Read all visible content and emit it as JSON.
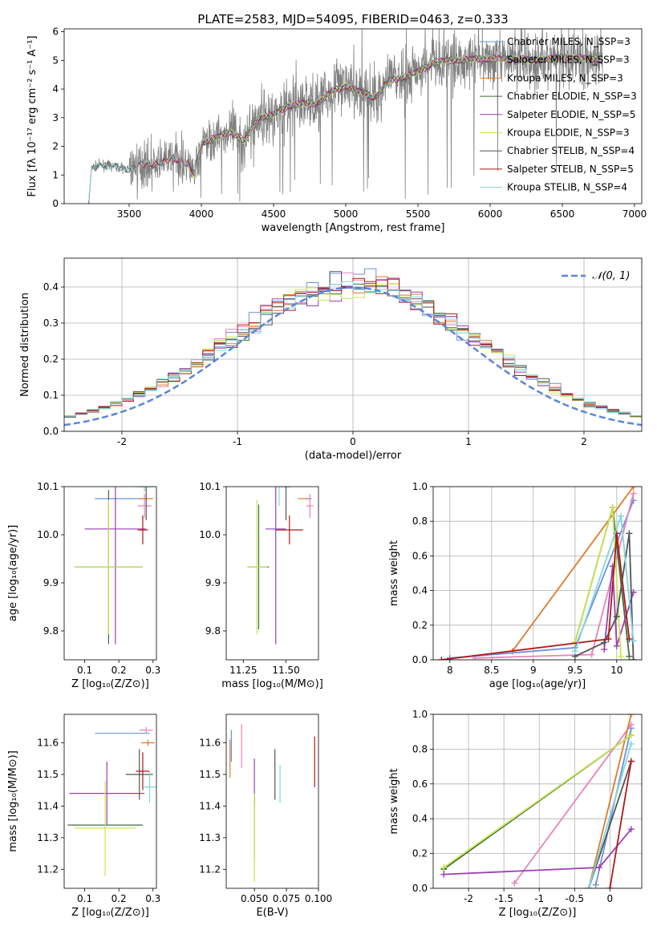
{
  "figure_title": "PLATE=2583, MJD=54095, FIBERID=0463, z=0.333",
  "colors": {
    "chabrier_miles": "#6f8fdc",
    "salpeter_miles": "#e884b8",
    "kroupa_miles": "#e07a2a",
    "chabrier_elodie": "#3e6e3e",
    "salpeter_elodie": "#9b3fb5",
    "kroupa_elodie": "#c8e650",
    "chabrier_stelib": "#555555",
    "salpeter_stelib": "#b01818",
    "kroupa_stelib": "#7fd6de",
    "data": "#808080"
  },
  "chart_data": [
    {
      "id": "spectrum",
      "type": "line",
      "title": "PLATE=2583, MJD=54095, FIBERID=0463, z=0.333",
      "xlabel": "wavelength [Angstrom, rest frame]",
      "ylabel": "Flux [fλ 10⁻¹⁷ erg cm⁻² s⁻¹ A⁻¹]",
      "xlim": [
        3050,
        7050
      ],
      "ylim": [
        0,
        6.1
      ],
      "xticks": [
        3500,
        4000,
        4500,
        5000,
        5500,
        6000,
        6500,
        7000
      ],
      "yticks": [
        0,
        1,
        2,
        3,
        4,
        5,
        6
      ],
      "legend_position": "upper-right",
      "legend": [
        "Chabrier MILES, N_SSP=3",
        "Salpeter MILES, N_SSP=3",
        "Kroupa MILES, N_SSP=3",
        "Chabrier ELODIE, N_SSP=3",
        "Salpeter ELODIE, N_SSP=5",
        "Kroupa ELODIE, N_SSP=3",
        "Chabrier STELIB, N_SSP=4",
        "Salpeter STELIB, N_SSP=5",
        "Kroupa STELIB, N_SSP=4"
      ],
      "continuum_nodes": [
        [
          3220,
          0.0
        ],
        [
          3240,
          1.25
        ],
        [
          3300,
          1.35
        ],
        [
          3400,
          1.3
        ],
        [
          3500,
          1.2
        ],
        [
          3600,
          1.4
        ],
        [
          3700,
          1.35
        ],
        [
          3800,
          1.6
        ],
        [
          3900,
          1.4
        ],
        [
          3950,
          1.0
        ],
        [
          4000,
          2.1
        ],
        [
          4100,
          2.3
        ],
        [
          4200,
          2.5
        ],
        [
          4300,
          2.2
        ],
        [
          4400,
          3.0
        ],
        [
          4500,
          3.1
        ],
        [
          4600,
          3.4
        ],
        [
          4700,
          3.5
        ],
        [
          4800,
          3.5
        ],
        [
          4900,
          3.9
        ],
        [
          5000,
          4.1
        ],
        [
          5100,
          3.9
        ],
        [
          5200,
          3.7
        ],
        [
          5300,
          4.3
        ],
        [
          5400,
          4.4
        ],
        [
          5500,
          4.6
        ],
        [
          5600,
          4.9
        ],
        [
          5700,
          5.0
        ],
        [
          5800,
          5.0
        ],
        [
          5900,
          5.05
        ],
        [
          6000,
          5.05
        ],
        [
          6100,
          5.05
        ],
        [
          6200,
          5.05
        ],
        [
          6300,
          5.0
        ],
        [
          6400,
          5.05
        ],
        [
          6500,
          5.1
        ],
        [
          6600,
          5.1
        ],
        [
          6700,
          5.05
        ],
        [
          6780,
          5.0
        ]
      ]
    },
    {
      "id": "residuals",
      "type": "histogram",
      "xlabel": "(data-model)/error",
      "ylabel": "Normed distribution",
      "xlim": [
        -2.5,
        2.5
      ],
      "ylim": [
        0,
        0.48
      ],
      "xticks": [
        -2,
        -1,
        0,
        1,
        2
      ],
      "yticks": [
        0.0,
        0.1,
        0.2,
        0.3,
        0.4
      ],
      "legend": [
        "𝒩(0, 1)"
      ],
      "legend_position": "upper-right",
      "reference_curve": "normal(0,1) pdf",
      "bin_width": 0.1
    },
    {
      "id": "age_vs_Z",
      "type": "scatter",
      "xlabel": "Z [log₁₀(Z/Z⊙)]",
      "ylabel": "age  [log₁₀(age/yr)]",
      "xlim": [
        0.04,
        0.31
      ],
      "ylim": [
        9.74,
        10.1
      ],
      "xticks": [
        0.1,
        0.2,
        0.3
      ],
      "yticks": [
        9.8,
        9.9,
        10.0,
        10.1
      ],
      "points": [
        {
          "model": "chabrier_miles",
          "x": 0.2,
          "y": 10.075,
          "xerr": 0.07,
          "yerr": 0.0
        },
        {
          "model": "salpeter_miles",
          "x": 0.275,
          "y": 10.06,
          "xerr": 0.02,
          "yerr": 0.025
        },
        {
          "model": "kroupa_miles",
          "x": 0.28,
          "y": 10.075,
          "xerr": 0.02,
          "yerr": 0.0
        },
        {
          "model": "chabrier_elodie",
          "x": 0.17,
          "y": 9.933,
          "xerr": 0.1,
          "yerr": 0.16
        },
        {
          "model": "salpeter_elodie",
          "x": 0.19,
          "y": 10.012,
          "xerr": 0.09,
          "yerr": 0.24
        },
        {
          "model": "kroupa_elodie",
          "x": 0.17,
          "y": 9.933,
          "xerr": 0.1,
          "yerr": 0.14
        },
        {
          "model": "chabrier_stelib",
          "x": 0.28,
          "y": 10.1,
          "xerr": 0.02,
          "yerr": 0.07
        },
        {
          "model": "salpeter_stelib",
          "x": 0.27,
          "y": 10.01,
          "xerr": 0.015,
          "yerr": 0.03
        },
        {
          "model": "kroupa_stelib",
          "x": 0.275,
          "y": 10.1,
          "xerr": 0.03,
          "yerr": 0.01
        }
      ]
    },
    {
      "id": "age_vs_mass",
      "type": "scatter",
      "xlabel": "mass [log₁₀(M/M⊙)]",
      "ylabel": "",
      "xlim": [
        11.15,
        11.69
      ],
      "ylim": [
        9.74,
        10.1
      ],
      "xticks": [
        11.25,
        11.5
      ],
      "xtick_labels": [
        "11.25",
        "11.50"
      ],
      "yticks": [
        9.8,
        9.9,
        10.0,
        10.1
      ],
      "points": [
        {
          "model": "chabrier_miles",
          "x": 11.63,
          "y": 10.075,
          "xerr": 0.02,
          "yerr": 0.0
        },
        {
          "model": "salpeter_miles",
          "x": 11.64,
          "y": 10.06,
          "xerr": 0.02,
          "yerr": 0.025
        },
        {
          "model": "kroupa_miles",
          "x": 11.6,
          "y": 10.075,
          "xerr": 0.03,
          "yerr": 0.0
        },
        {
          "model": "chabrier_elodie",
          "x": 11.34,
          "y": 9.933,
          "xerr": 0.06,
          "yerr": 0.13
        },
        {
          "model": "salpeter_elodie",
          "x": 11.44,
          "y": 10.012,
          "xerr": 0.06,
          "yerr": 0.24
        },
        {
          "model": "kroupa_elodie",
          "x": 11.33,
          "y": 9.933,
          "xerr": 0.06,
          "yerr": 0.14
        },
        {
          "model": "chabrier_stelib",
          "x": 11.5,
          "y": 10.1,
          "xerr": 0.03,
          "yerr": 0.07
        },
        {
          "model": "salpeter_stelib",
          "x": 11.52,
          "y": 10.01,
          "xerr": 0.08,
          "yerr": 0.03
        },
        {
          "model": "kroupa_stelib",
          "x": 11.46,
          "y": 10.1,
          "xerr": 0.03,
          "yerr": 0.04
        }
      ]
    },
    {
      "id": "mass_weight_vs_age",
      "type": "line",
      "xlabel": "age  [log₁₀(age/yr)]",
      "ylabel": "mass weight",
      "xlim": [
        7.8,
        10.3
      ],
      "ylim": [
        0,
        1
      ],
      "xticks": [
        8.0,
        8.5,
        9.0,
        9.5,
        10.0
      ],
      "yticks": [
        0.0,
        0.2,
        0.4,
        0.6,
        0.8,
        1.0
      ],
      "series": [
        {
          "model": "chabrier_miles",
          "x": [
            8.0,
            9.5,
            10.2
          ],
          "y": [
            0.01,
            0.07,
            0.92
          ]
        },
        {
          "model": "salpeter_miles",
          "x": [
            8.3,
            9.7,
            10.2
          ],
          "y": [
            0.01,
            0.03,
            0.96
          ]
        },
        {
          "model": "kroupa_miles",
          "x": [
            8.75,
            10.2
          ],
          "y": [
            0.05,
            1.0
          ]
        },
        {
          "model": "chabrier_elodie",
          "x": [
            9.5,
            9.95,
            10.15
          ],
          "y": [
            0.1,
            0.88,
            0.02
          ]
        },
        {
          "model": "salpeter_elodie",
          "x": [
            9.85,
            9.95,
            10.0,
            10.2
          ],
          "y": [
            0.06,
            0.54,
            0.08,
            0.39
          ]
        },
        {
          "model": "kroupa_elodie",
          "x": [
            9.5,
            9.95,
            10.05
          ],
          "y": [
            0.1,
            0.88,
            0.02
          ]
        },
        {
          "model": "chabrier_stelib",
          "x": [
            9.5,
            9.85,
            10.0,
            10.15,
            10.2
          ],
          "y": [
            0.02,
            0.1,
            0.25,
            0.73,
            0.0
          ]
        },
        {
          "model": "salpeter_stelib",
          "x": [
            7.9,
            9.9,
            10.0,
            10.15
          ],
          "y": [
            0.0,
            0.12,
            0.73,
            0.12
          ]
        },
        {
          "model": "kroupa_stelib",
          "x": [
            9.5,
            10.05,
            10.2
          ],
          "y": [
            0.05,
            0.83,
            0.11
          ]
        }
      ]
    },
    {
      "id": "mass_vs_Z",
      "type": "scatter",
      "xlabel": "Z [log₁₀(Z/Z⊙)]",
      "ylabel": "mass [log₁₀(M/M⊙)]",
      "xlim": [
        0.04,
        0.31
      ],
      "ylim": [
        11.14,
        11.69
      ],
      "xticks": [
        0.1,
        0.2,
        0.3
      ],
      "yticks": [
        11.2,
        11.3,
        11.4,
        11.5,
        11.6
      ],
      "points": [
        {
          "model": "chabrier_miles",
          "x": 0.21,
          "y": 11.63,
          "xerr": 0.08,
          "yerr": 0.0
        },
        {
          "model": "salpeter_miles",
          "x": 0.28,
          "y": 11.64,
          "xerr": 0.02,
          "yerr": 0.01
        },
        {
          "model": "kroupa_miles",
          "x": 0.285,
          "y": 11.6,
          "xerr": 0.02,
          "yerr": 0.01
        },
        {
          "model": "chabrier_elodie",
          "x": 0.16,
          "y": 11.34,
          "xerr": 0.11,
          "yerr": 0.0
        },
        {
          "model": "salpeter_elodie",
          "x": 0.165,
          "y": 11.44,
          "xerr": 0.11,
          "yerr": 0.1
        },
        {
          "model": "kroupa_elodie",
          "x": 0.16,
          "y": 11.33,
          "xerr": 0.09,
          "yerr": 0.15
        },
        {
          "model": "chabrier_stelib",
          "x": 0.26,
          "y": 11.5,
          "xerr": 0.04,
          "yerr": 0.08
        },
        {
          "model": "salpeter_stelib",
          "x": 0.27,
          "y": 11.51,
          "xerr": 0.02,
          "yerr": 0.06
        },
        {
          "model": "kroupa_stelib",
          "x": 0.29,
          "y": 11.46,
          "xerr": 0.02,
          "yerr": 0.05
        }
      ]
    },
    {
      "id": "mass_vs_ebv",
      "type": "scatter",
      "xlabel": "E(B-V)",
      "ylabel": "",
      "xlim": [
        0.028,
        0.1
      ],
      "ylim": [
        11.14,
        11.69
      ],
      "xticks": [
        0.05,
        0.075,
        0.1
      ],
      "xtick_labels": [
        "0.050",
        "0.075",
        "0.100"
      ],
      "yticks": [
        11.2,
        11.3,
        11.4,
        11.5,
        11.6
      ],
      "points": [
        {
          "model": "chabrier_miles",
          "x": 0.032,
          "y": 11.59,
          "xerr": 0.0,
          "yerr": 0.05
        },
        {
          "model": "salpeter_miles",
          "x": 0.04,
          "y": 11.59,
          "xerr": 0.0,
          "yerr": 0.07
        },
        {
          "model": "kroupa_miles",
          "x": 0.031,
          "y": 11.55,
          "xerr": 0.0,
          "yerr": 0.06
        },
        {
          "model": "chabrier_elodie",
          "x": 0.05,
          "y": 11.33,
          "xerr": 0.0,
          "yerr": 0.1
        },
        {
          "model": "salpeter_elodie",
          "x": 0.05,
          "y": 11.48,
          "xerr": 0.0,
          "yerr": 0.07
        },
        {
          "model": "kroupa_elodie",
          "x": 0.05,
          "y": 11.3,
          "xerr": 0.0,
          "yerr": 0.14
        },
        {
          "model": "chabrier_stelib",
          "x": 0.066,
          "y": 11.5,
          "xerr": 0.0,
          "yerr": 0.08
        },
        {
          "model": "salpeter_stelib",
          "x": 0.097,
          "y": 11.54,
          "xerr": 0.0,
          "yerr": 0.08
        },
        {
          "model": "kroupa_stelib",
          "x": 0.07,
          "y": 11.47,
          "xerr": 0.0,
          "yerr": 0.06
        }
      ]
    },
    {
      "id": "mass_weight_vs_Z",
      "type": "line",
      "xlabel": "Z [log₁₀(Z/Z⊙)]",
      "ylabel": "mass weight",
      "xlim": [
        -2.5,
        0.45
      ],
      "ylim": [
        0,
        1
      ],
      "xticks": [
        -2.0,
        -1.5,
        -1.0,
        -0.5,
        0.0
      ],
      "yticks": [
        0.0,
        0.2,
        0.4,
        0.6,
        0.8,
        1.0
      ],
      "series": [
        {
          "model": "chabrier_miles",
          "x": [
            -0.2,
            0.3
          ],
          "y": [
            0.02,
            0.92
          ]
        },
        {
          "model": "salpeter_miles",
          "x": [
            -1.35,
            0.3
          ],
          "y": [
            0.03,
            0.94
          ]
        },
        {
          "model": "kroupa_miles",
          "x": [
            -0.3,
            0.3
          ],
          "y": [
            0.0,
            1.0
          ]
        },
        {
          "model": "chabrier_elodie",
          "x": [
            -2.35,
            0.3
          ],
          "y": [
            0.11,
            0.88
          ]
        },
        {
          "model": "salpeter_elodie",
          "x": [
            -2.35,
            -0.15,
            0.3
          ],
          "y": [
            0.08,
            0.12,
            0.34
          ]
        },
        {
          "model": "kroupa_elodie",
          "x": [
            -2.35,
            0.3
          ],
          "y": [
            0.12,
            0.88
          ]
        },
        {
          "model": "chabrier_stelib",
          "x": [
            -0.3,
            0.3
          ],
          "y": [
            0.0,
            0.73
          ]
        },
        {
          "model": "salpeter_stelib",
          "x": [
            0.0,
            0.3
          ],
          "y": [
            0.0,
            0.73
          ]
        },
        {
          "model": "kroupa_stelib",
          "x": [
            -0.3,
            0.3
          ],
          "y": [
            0.0,
            0.83
          ]
        }
      ]
    }
  ]
}
